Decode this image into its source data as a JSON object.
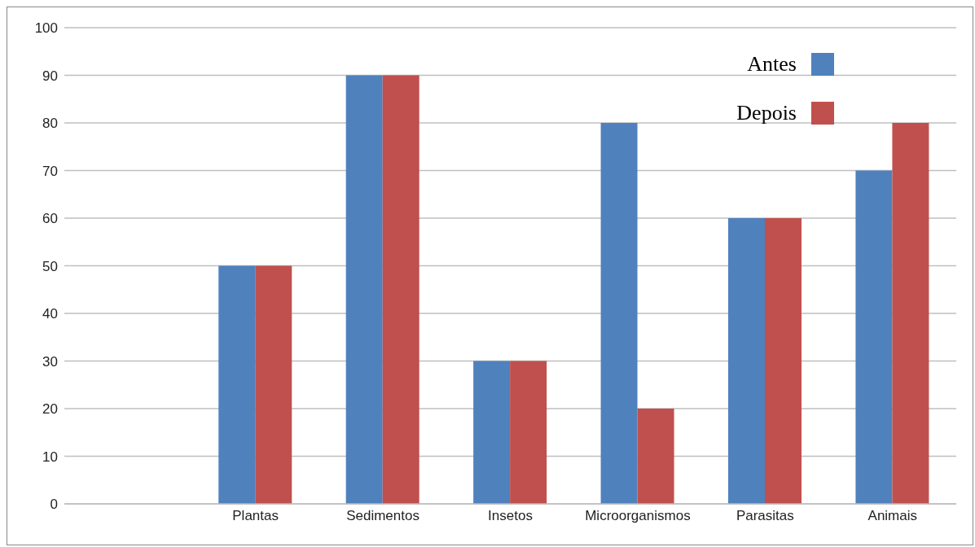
{
  "chart_data": {
    "type": "bar",
    "categories": [
      null,
      "Plantas",
      "Sedimentos",
      "Insetos",
      "Microorganismos",
      "Parasitas",
      "Animais"
    ],
    "series": [
      {
        "name": "Antes",
        "color": "#4f81bd",
        "values": [
          null,
          50,
          90,
          30,
          80,
          60,
          70
        ]
      },
      {
        "name": "Depois",
        "color": "#c0504d",
        "values": [
          null,
          50,
          90,
          30,
          20,
          60,
          80
        ]
      }
    ],
    "ylim": [
      0,
      100
    ],
    "yticks": [
      0,
      10,
      20,
      30,
      40,
      50,
      60,
      70,
      80,
      90,
      100
    ],
    "grid": "y",
    "legend": "top right"
  }
}
